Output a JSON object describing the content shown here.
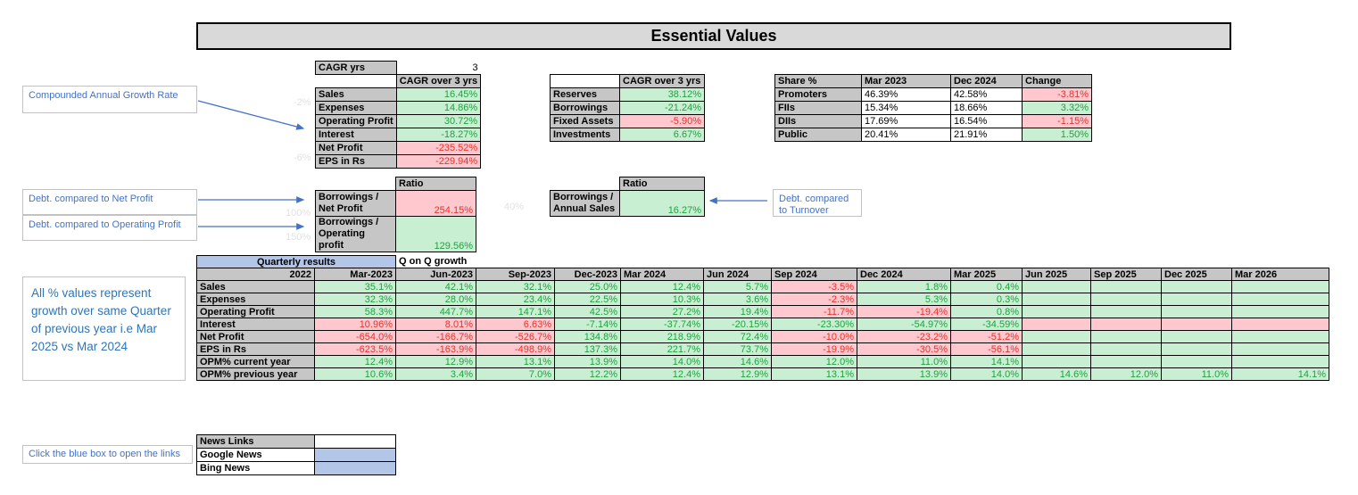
{
  "title": "Essential Values",
  "colors": {
    "good_bg": "#c9efd3",
    "good_text": "#1fa13f",
    "bad_bg": "#ffc7ce",
    "bad_text": "#e5342b",
    "accent_blue": "#4472c4",
    "link_box_blue": "#b4c6e7",
    "header_gray": "#c6c6c6",
    "title_gray": "#d9d9d9",
    "quarterly_header_blue": "#b4c6e7"
  },
  "cagr": {
    "param_label": "CAGR yrs",
    "param_value": "3",
    "value_header": "CAGR over 3 yrs",
    "rows": [
      {
        "label": "Sales",
        "value": "16.45%",
        "state": "good"
      },
      {
        "label": "Expenses",
        "value": "14.86%",
        "state": "good"
      },
      {
        "label": "Operating Profit",
        "value": "30.72%",
        "state": "good"
      },
      {
        "label": "Interest",
        "value": "-18.27%",
        "state": "good"
      },
      {
        "label": "Net Profit",
        "value": "-235.52%",
        "state": "bad"
      },
      {
        "label": "EPS in Rs",
        "value": "-229.94%",
        "state": "bad"
      }
    ]
  },
  "balance": {
    "value_header": "CAGR over 3 yrs",
    "rows": [
      {
        "label": "Reserves",
        "value": "38.12%",
        "state": "good"
      },
      {
        "label": "Borrowings",
        "value": "-21.24%",
        "state": "good"
      },
      {
        "label": "Fixed Assets",
        "value": "-5.90%",
        "state": "bad"
      },
      {
        "label": "Investments",
        "value": "6.67%",
        "state": "good"
      }
    ]
  },
  "share": {
    "headers": [
      "Share %",
      "Mar 2023",
      "Dec 2024",
      "Change"
    ],
    "rows": [
      {
        "label": "Promoters",
        "values": [
          "46.39%",
          "42.58%"
        ],
        "change": "-3.81%",
        "state": "bad"
      },
      {
        "label": "FIIs",
        "values": [
          "15.34%",
          "18.66%"
        ],
        "change": "3.32%",
        "state": "good"
      },
      {
        "label": "DIIs",
        "values": [
          "17.69%",
          "16.54%"
        ],
        "change": "-1.15%",
        "state": "bad"
      },
      {
        "label": "Public",
        "values": [
          "20.41%",
          "21.91%"
        ],
        "change": "1.50%",
        "state": "good"
      }
    ]
  },
  "ratio_left": {
    "header": "Ratio",
    "rows": [
      {
        "label": "Borrowings / Net Profit",
        "value": "254.15%",
        "state": "bad"
      },
      {
        "label": "Borrowings / Operating profit",
        "value": "129.56%",
        "state": "good"
      }
    ]
  },
  "ratio_mid": {
    "header": "Ratio",
    "rows": [
      {
        "label": "Borrowings / Annual Sales",
        "value": "16.27%",
        "state": "good"
      }
    ]
  },
  "callouts": {
    "cagr": "Compounded Annual Growth Rate",
    "debt_net_profit": "Debt. compared to Net Profit",
    "debt_operating_profit": "Debt. compared to Operating Profit",
    "debt_turnover": "Debt. compared to Turnover",
    "quarterly_note": "All % values represent growth over same Quarter of previous year i.e Mar 2025 vs Mar 2024",
    "news_note": "Click the blue box to open the links"
  },
  "ghost_labels": [
    {
      "text": "-2%"
    },
    {
      "text": "-6%"
    },
    {
      "text": "100%"
    },
    {
      "text": "150%"
    },
    {
      "text": "40%"
    }
  ],
  "quarterly": {
    "group_header": "Quarterly results",
    "growth_header": "Q on Q growth",
    "base_year": "2022",
    "columns": [
      "Mar-2023",
      "Jun-2023",
      "Sep-2023",
      "Dec-2023",
      "Mar 2024",
      "Jun 2024",
      "Sep 2024",
      "Dec 2024",
      "Mar 2025",
      "Jun 2025",
      "Sep 2025",
      "Dec 2025",
      "Mar 2026"
    ],
    "rows": [
      {
        "label": "Sales",
        "cells": [
          [
            "35.1%",
            "good"
          ],
          [
            "42.1%",
            "good"
          ],
          [
            "32.1%",
            "good"
          ],
          [
            "25.0%",
            "good"
          ],
          [
            "12.4%",
            "good"
          ],
          [
            "5.7%",
            "good"
          ],
          [
            "-3.5%",
            "bad"
          ],
          [
            "1.8%",
            "good"
          ],
          [
            "0.4%",
            "good"
          ],
          [
            "",
            "good"
          ],
          [
            "",
            "good"
          ],
          [
            "",
            "good"
          ],
          [
            "",
            "good"
          ]
        ]
      },
      {
        "label": "Expenses",
        "cells": [
          [
            "32.3%",
            "good"
          ],
          [
            "28.0%",
            "good"
          ],
          [
            "23.4%",
            "good"
          ],
          [
            "22.5%",
            "good"
          ],
          [
            "10.3%",
            "good"
          ],
          [
            "3.6%",
            "good"
          ],
          [
            "-2.3%",
            "bad"
          ],
          [
            "5.3%",
            "good"
          ],
          [
            "0.3%",
            "good"
          ],
          [
            "",
            "good"
          ],
          [
            "",
            "good"
          ],
          [
            "",
            "good"
          ],
          [
            "",
            "good"
          ]
        ]
      },
      {
        "label": "Operating Profit",
        "cells": [
          [
            "58.3%",
            "good"
          ],
          [
            "447.7%",
            "good"
          ],
          [
            "147.1%",
            "good"
          ],
          [
            "42.5%",
            "good"
          ],
          [
            "27.2%",
            "good"
          ],
          [
            "19.4%",
            "good"
          ],
          [
            "-11.7%",
            "bad"
          ],
          [
            "-19.4%",
            "bad"
          ],
          [
            "0.8%",
            "good"
          ],
          [
            "",
            "good"
          ],
          [
            "",
            "good"
          ],
          [
            "",
            "good"
          ],
          [
            "",
            "good"
          ]
        ]
      },
      {
        "label": "Interest",
        "cells": [
          [
            "10.96%",
            "bad"
          ],
          [
            "8.01%",
            "bad"
          ],
          [
            "6.63%",
            "bad"
          ],
          [
            "-7.14%",
            "good"
          ],
          [
            "-37.74%",
            "good"
          ],
          [
            "-20.15%",
            "good"
          ],
          [
            "-23.30%",
            "good"
          ],
          [
            "-54.97%",
            "good"
          ],
          [
            "-34.59%",
            "good"
          ],
          [
            "",
            "bad"
          ],
          [
            "",
            "bad"
          ],
          [
            "",
            "bad"
          ],
          [
            "",
            "bad"
          ]
        ]
      },
      {
        "label": "Net Profit",
        "cells": [
          [
            "-654.0%",
            "bad"
          ],
          [
            "-166.7%",
            "bad"
          ],
          [
            "-526.7%",
            "bad"
          ],
          [
            "134.8%",
            "good"
          ],
          [
            "218.9%",
            "good"
          ],
          [
            "72.4%",
            "good"
          ],
          [
            "-10.0%",
            "bad"
          ],
          [
            "-23.2%",
            "bad"
          ],
          [
            "-51.2%",
            "bad"
          ],
          [
            "",
            "good"
          ],
          [
            "",
            "good"
          ],
          [
            "",
            "good"
          ],
          [
            "",
            "good"
          ]
        ]
      },
      {
        "label": "EPS in Rs",
        "cells": [
          [
            "-623.5%",
            "bad"
          ],
          [
            "-163.9%",
            "bad"
          ],
          [
            "-498.9%",
            "bad"
          ],
          [
            "137.3%",
            "good"
          ],
          [
            "221.7%",
            "good"
          ],
          [
            "73.7%",
            "good"
          ],
          [
            "-19.9%",
            "bad"
          ],
          [
            "-30.5%",
            "bad"
          ],
          [
            "-56.1%",
            "bad"
          ],
          [
            "",
            "good"
          ],
          [
            "",
            "good"
          ],
          [
            "",
            "good"
          ],
          [
            "",
            "good"
          ]
        ]
      },
      {
        "label": "OPM% current year",
        "cells": [
          [
            "12.4%",
            "good"
          ],
          [
            "12.9%",
            "good"
          ],
          [
            "13.1%",
            "good"
          ],
          [
            "13.9%",
            "good"
          ],
          [
            "14.0%",
            "good"
          ],
          [
            "14.6%",
            "good"
          ],
          [
            "12.0%",
            "good"
          ],
          [
            "11.0%",
            "good"
          ],
          [
            "14.1%",
            "good"
          ],
          [
            "",
            "good"
          ],
          [
            "",
            "good"
          ],
          [
            "",
            "good"
          ],
          [
            "",
            "good"
          ]
        ]
      },
      {
        "label": "OPM% previous year",
        "cells": [
          [
            "10.6%",
            "good"
          ],
          [
            "3.4%",
            "good"
          ],
          [
            "7.0%",
            "good"
          ],
          [
            "12.2%",
            "good"
          ],
          [
            "12.4%",
            "good"
          ],
          [
            "12.9%",
            "good"
          ],
          [
            "13.1%",
            "good"
          ],
          [
            "13.9%",
            "good"
          ],
          [
            "14.0%",
            "good"
          ],
          [
            "14.6%",
            "good"
          ],
          [
            "12.0%",
            "good"
          ],
          [
            "11.0%",
            "good"
          ],
          [
            "14.1%",
            "good"
          ]
        ]
      }
    ]
  },
  "news": {
    "header": "News Links",
    "links": [
      "Google News",
      "Bing News"
    ]
  }
}
